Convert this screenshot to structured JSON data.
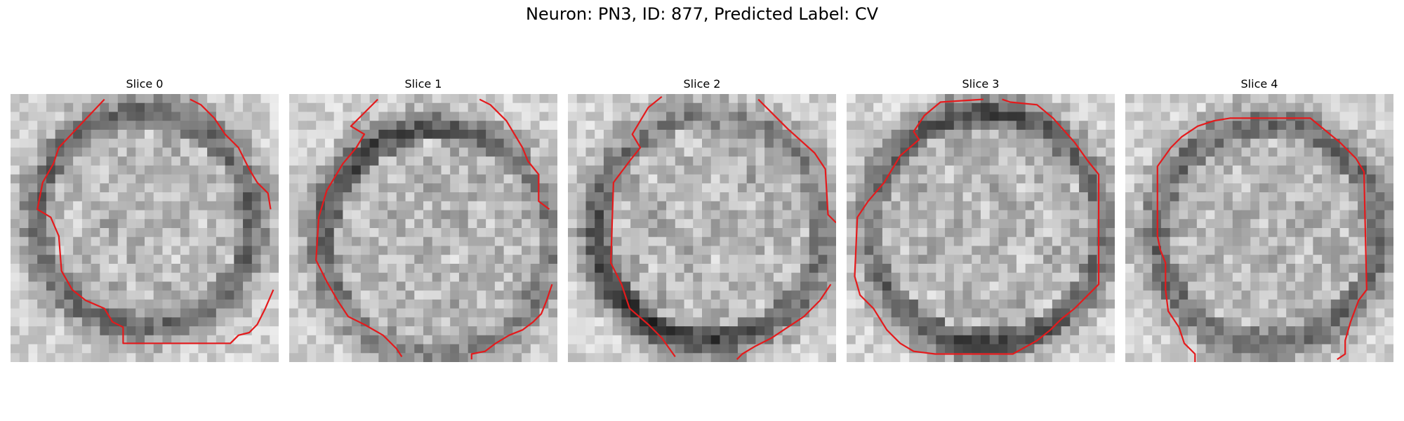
{
  "figure": {
    "title": "Neuron: PN3, ID: 877, Predicted Label: CV"
  },
  "panels": [
    {
      "title": "Slice 0",
      "seed": 11,
      "center": [
        0.5,
        0.47
      ],
      "radius": 0.4,
      "dark_side": "ring"
    },
    {
      "title": "Slice 1",
      "seed": 23,
      "center": [
        0.55,
        0.55
      ],
      "radius": 0.42,
      "dark_side": "upper-left"
    },
    {
      "title": "Slice 2",
      "seed": 37,
      "center": [
        0.53,
        0.5
      ],
      "radius": 0.42,
      "dark_side": "left-bottom"
    },
    {
      "title": "Slice 3",
      "seed": 41,
      "center": [
        0.52,
        0.5
      ],
      "radius": 0.43,
      "dark_side": "top-bottom"
    },
    {
      "title": "Slice 4",
      "seed": 53,
      "center": [
        0.53,
        0.52
      ],
      "radius": 0.41,
      "dark_side": "ring"
    }
  ],
  "contours": [
    [
      [
        0.35,
        0.02
      ],
      [
        0.18,
        0.2
      ],
      [
        0.16,
        0.26
      ],
      [
        0.12,
        0.33
      ],
      [
        0.1,
        0.43
      ],
      [
        0.15,
        0.46
      ],
      [
        0.18,
        0.53
      ],
      [
        0.19,
        0.66
      ],
      [
        0.23,
        0.73
      ],
      [
        0.28,
        0.77
      ],
      [
        0.35,
        0.8
      ],
      [
        0.38,
        0.85
      ],
      [
        0.42,
        0.87
      ],
      [
        0.42,
        0.93
      ],
      [
        0.82,
        0.93
      ],
      [
        0.85,
        0.9
      ],
      [
        0.89,
        0.89
      ],
      [
        0.92,
        0.86
      ],
      [
        0.95,
        0.8
      ],
      [
        0.98,
        0.73
      ]
    ],
    [
      [
        0.33,
        0.02
      ],
      [
        0.27,
        0.08
      ],
      [
        0.23,
        0.12
      ],
      [
        0.28,
        0.15
      ],
      [
        0.25,
        0.2
      ],
      [
        0.2,
        0.26
      ],
      [
        0.14,
        0.36
      ],
      [
        0.11,
        0.46
      ],
      [
        0.1,
        0.62
      ],
      [
        0.14,
        0.7
      ],
      [
        0.18,
        0.77
      ],
      [
        0.22,
        0.83
      ],
      [
        0.28,
        0.86
      ],
      [
        0.35,
        0.9
      ],
      [
        0.4,
        0.95
      ],
      [
        0.42,
        0.98
      ]
    ],
    [
      [
        0.35,
        0.01
      ],
      [
        0.3,
        0.05
      ],
      [
        0.27,
        0.1
      ],
      [
        0.24,
        0.15
      ],
      [
        0.27,
        0.2
      ],
      [
        0.23,
        0.25
      ],
      [
        0.17,
        0.33
      ],
      [
        0.16,
        0.63
      ],
      [
        0.2,
        0.71
      ],
      [
        0.23,
        0.8
      ],
      [
        0.3,
        0.86
      ],
      [
        0.35,
        0.91
      ],
      [
        0.4,
        0.98
      ]
    ],
    [
      [
        0.51,
        0.02
      ],
      [
        0.35,
        0.03
      ],
      [
        0.29,
        0.08
      ],
      [
        0.25,
        0.14
      ],
      [
        0.27,
        0.17
      ],
      [
        0.2,
        0.23
      ],
      [
        0.14,
        0.33
      ],
      [
        0.08,
        0.4
      ],
      [
        0.04,
        0.46
      ],
      [
        0.03,
        0.68
      ],
      [
        0.05,
        0.75
      ],
      [
        0.1,
        0.8
      ],
      [
        0.15,
        0.88
      ],
      [
        0.2,
        0.93
      ],
      [
        0.25,
        0.96
      ],
      [
        0.33,
        0.97
      ],
      [
        0.62,
        0.97
      ],
      [
        0.71,
        0.92
      ],
      [
        0.76,
        0.88
      ],
      [
        0.8,
        0.84
      ],
      [
        0.85,
        0.8
      ],
      [
        0.89,
        0.76
      ],
      [
        0.94,
        0.71
      ],
      [
        0.94,
        0.3
      ],
      [
        0.9,
        0.25
      ],
      [
        0.85,
        0.18
      ],
      [
        0.77,
        0.09
      ],
      [
        0.71,
        0.04
      ],
      [
        0.61,
        0.03
      ],
      [
        0.58,
        0.02
      ]
    ],
    [
      [
        0.26,
        1.0
      ],
      [
        0.26,
        0.97
      ],
      [
        0.22,
        0.93
      ],
      [
        0.2,
        0.87
      ],
      [
        0.16,
        0.81
      ],
      [
        0.15,
        0.73
      ],
      [
        0.15,
        0.63
      ],
      [
        0.13,
        0.58
      ],
      [
        0.12,
        0.53
      ],
      [
        0.12,
        0.27
      ],
      [
        0.17,
        0.2
      ],
      [
        0.21,
        0.16
      ],
      [
        0.27,
        0.12
      ],
      [
        0.33,
        0.1
      ],
      [
        0.39,
        0.09
      ],
      [
        0.69,
        0.09
      ],
      [
        0.8,
        0.18
      ],
      [
        0.86,
        0.24
      ],
      [
        0.89,
        0.29
      ],
      [
        0.9,
        0.73
      ],
      [
        0.87,
        0.77
      ],
      [
        0.84,
        0.85
      ],
      [
        0.82,
        0.92
      ],
      [
        0.82,
        0.97
      ],
      [
        0.79,
        0.99
      ]
    ]
  ],
  "contours_extra": [
    [
      [
        0.67,
        0.02
      ],
      [
        0.71,
        0.04
      ],
      [
        0.76,
        0.09
      ],
      [
        0.8,
        0.15
      ],
      [
        0.85,
        0.2
      ],
      [
        0.89,
        0.28
      ],
      [
        0.92,
        0.33
      ],
      [
        0.96,
        0.37
      ],
      [
        0.97,
        0.43
      ]
    ],
    [
      [
        0.71,
        0.02
      ],
      [
        0.75,
        0.04
      ],
      [
        0.81,
        0.1
      ],
      [
        0.87,
        0.2
      ],
      [
        0.89,
        0.25
      ],
      [
        0.93,
        0.3
      ],
      [
        0.93,
        0.4
      ],
      [
        0.97,
        0.43
      ]
    ],
    [
      [
        0.71,
        0.02
      ],
      [
        0.82,
        0.13
      ],
      [
        0.92,
        0.22
      ],
      [
        0.96,
        0.28
      ],
      [
        0.97,
        0.45
      ],
      [
        1.0,
        0.48
      ]
    ],
    [],
    []
  ],
  "contours_extra2": [
    [],
    [
      [
        0.98,
        0.71
      ],
      [
        0.96,
        0.77
      ],
      [
        0.94,
        0.82
      ],
      [
        0.91,
        0.85
      ],
      [
        0.87,
        0.88
      ],
      [
        0.82,
        0.9
      ],
      [
        0.77,
        0.93
      ],
      [
        0.73,
        0.96
      ],
      [
        0.68,
        0.97
      ],
      [
        0.68,
        0.99
      ]
    ],
    [
      [
        0.98,
        0.71
      ],
      [
        0.94,
        0.77
      ],
      [
        0.88,
        0.83
      ],
      [
        0.82,
        0.87
      ],
      [
        0.76,
        0.91
      ],
      [
        0.7,
        0.94
      ],
      [
        0.65,
        0.97
      ],
      [
        0.63,
        0.99
      ]
    ],
    [],
    []
  ],
  "colors": {
    "contour": "#e41a1c",
    "background": "#ffffff"
  },
  "grid_size": 30
}
